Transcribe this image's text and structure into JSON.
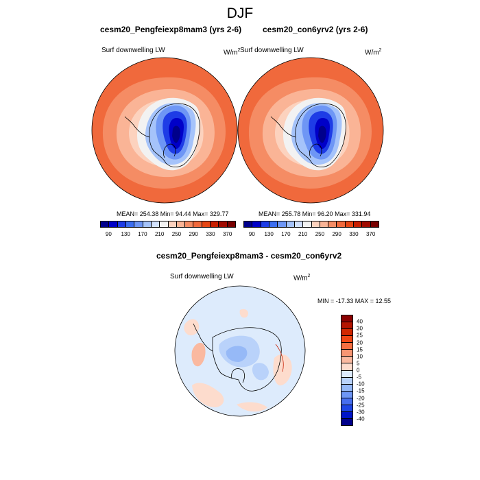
{
  "title": "DJF",
  "panels": [
    {
      "heading": "cesm20_Pengfeiexp8mam3 (yrs 2-6)",
      "field_label": "Surf downwelling LW",
      "units_base": "W/m",
      "units_exp": "2",
      "stats": "MEAN= 254.38  Min=  94.44  Max= 329.77"
    },
    {
      "heading": "cesm20_con6yrv2 (yrs 2-6)",
      "field_label": "Surf downwelling LW",
      "units_base": "W/m",
      "units_exp": "2",
      "stats": "MEAN= 255.78  Min=  96.20  Max= 331.94"
    }
  ],
  "colorbar_top": {
    "labels": [
      "90",
      "130",
      "170",
      "210",
      "250",
      "290",
      "330",
      "370"
    ],
    "colors": [
      "#00008b",
      "#0000c8",
      "#1e3ce6",
      "#3c6ef0",
      "#6e96f5",
      "#a5c3fa",
      "#d2e1fc",
      "#f2f2f2",
      "#fcd2be",
      "#fab496",
      "#f58c64",
      "#f0693c",
      "#e64614",
      "#c81e00",
      "#a00a00",
      "#780000"
    ]
  },
  "difference": {
    "heading": "cesm20_Pengfeiexp8mam3 - cesm20_con6yrv2",
    "field_label": "Surf downwelling LW",
    "units_base": "W/m",
    "units_exp": "2",
    "stats": "MIN = -17.33 MAX =  12.55",
    "colorbar": {
      "labels": [
        "40",
        "30",
        "25",
        "20",
        "15",
        "10",
        "5",
        "0",
        "-5",
        "-10",
        "-15",
        "-20",
        "-25",
        "-30",
        "-40"
      ],
      "colors": [
        "#8b0000",
        "#b41400",
        "#d22800",
        "#f04614",
        "#f56e41",
        "#f79673",
        "#fab9a0",
        "#fddccd",
        "#ddebfc",
        "#b9d2fa",
        "#96b9f7",
        "#6e96f5",
        "#466ef0",
        "#1e46e6",
        "#0014c8",
        "#00008b"
      ]
    }
  }
}
